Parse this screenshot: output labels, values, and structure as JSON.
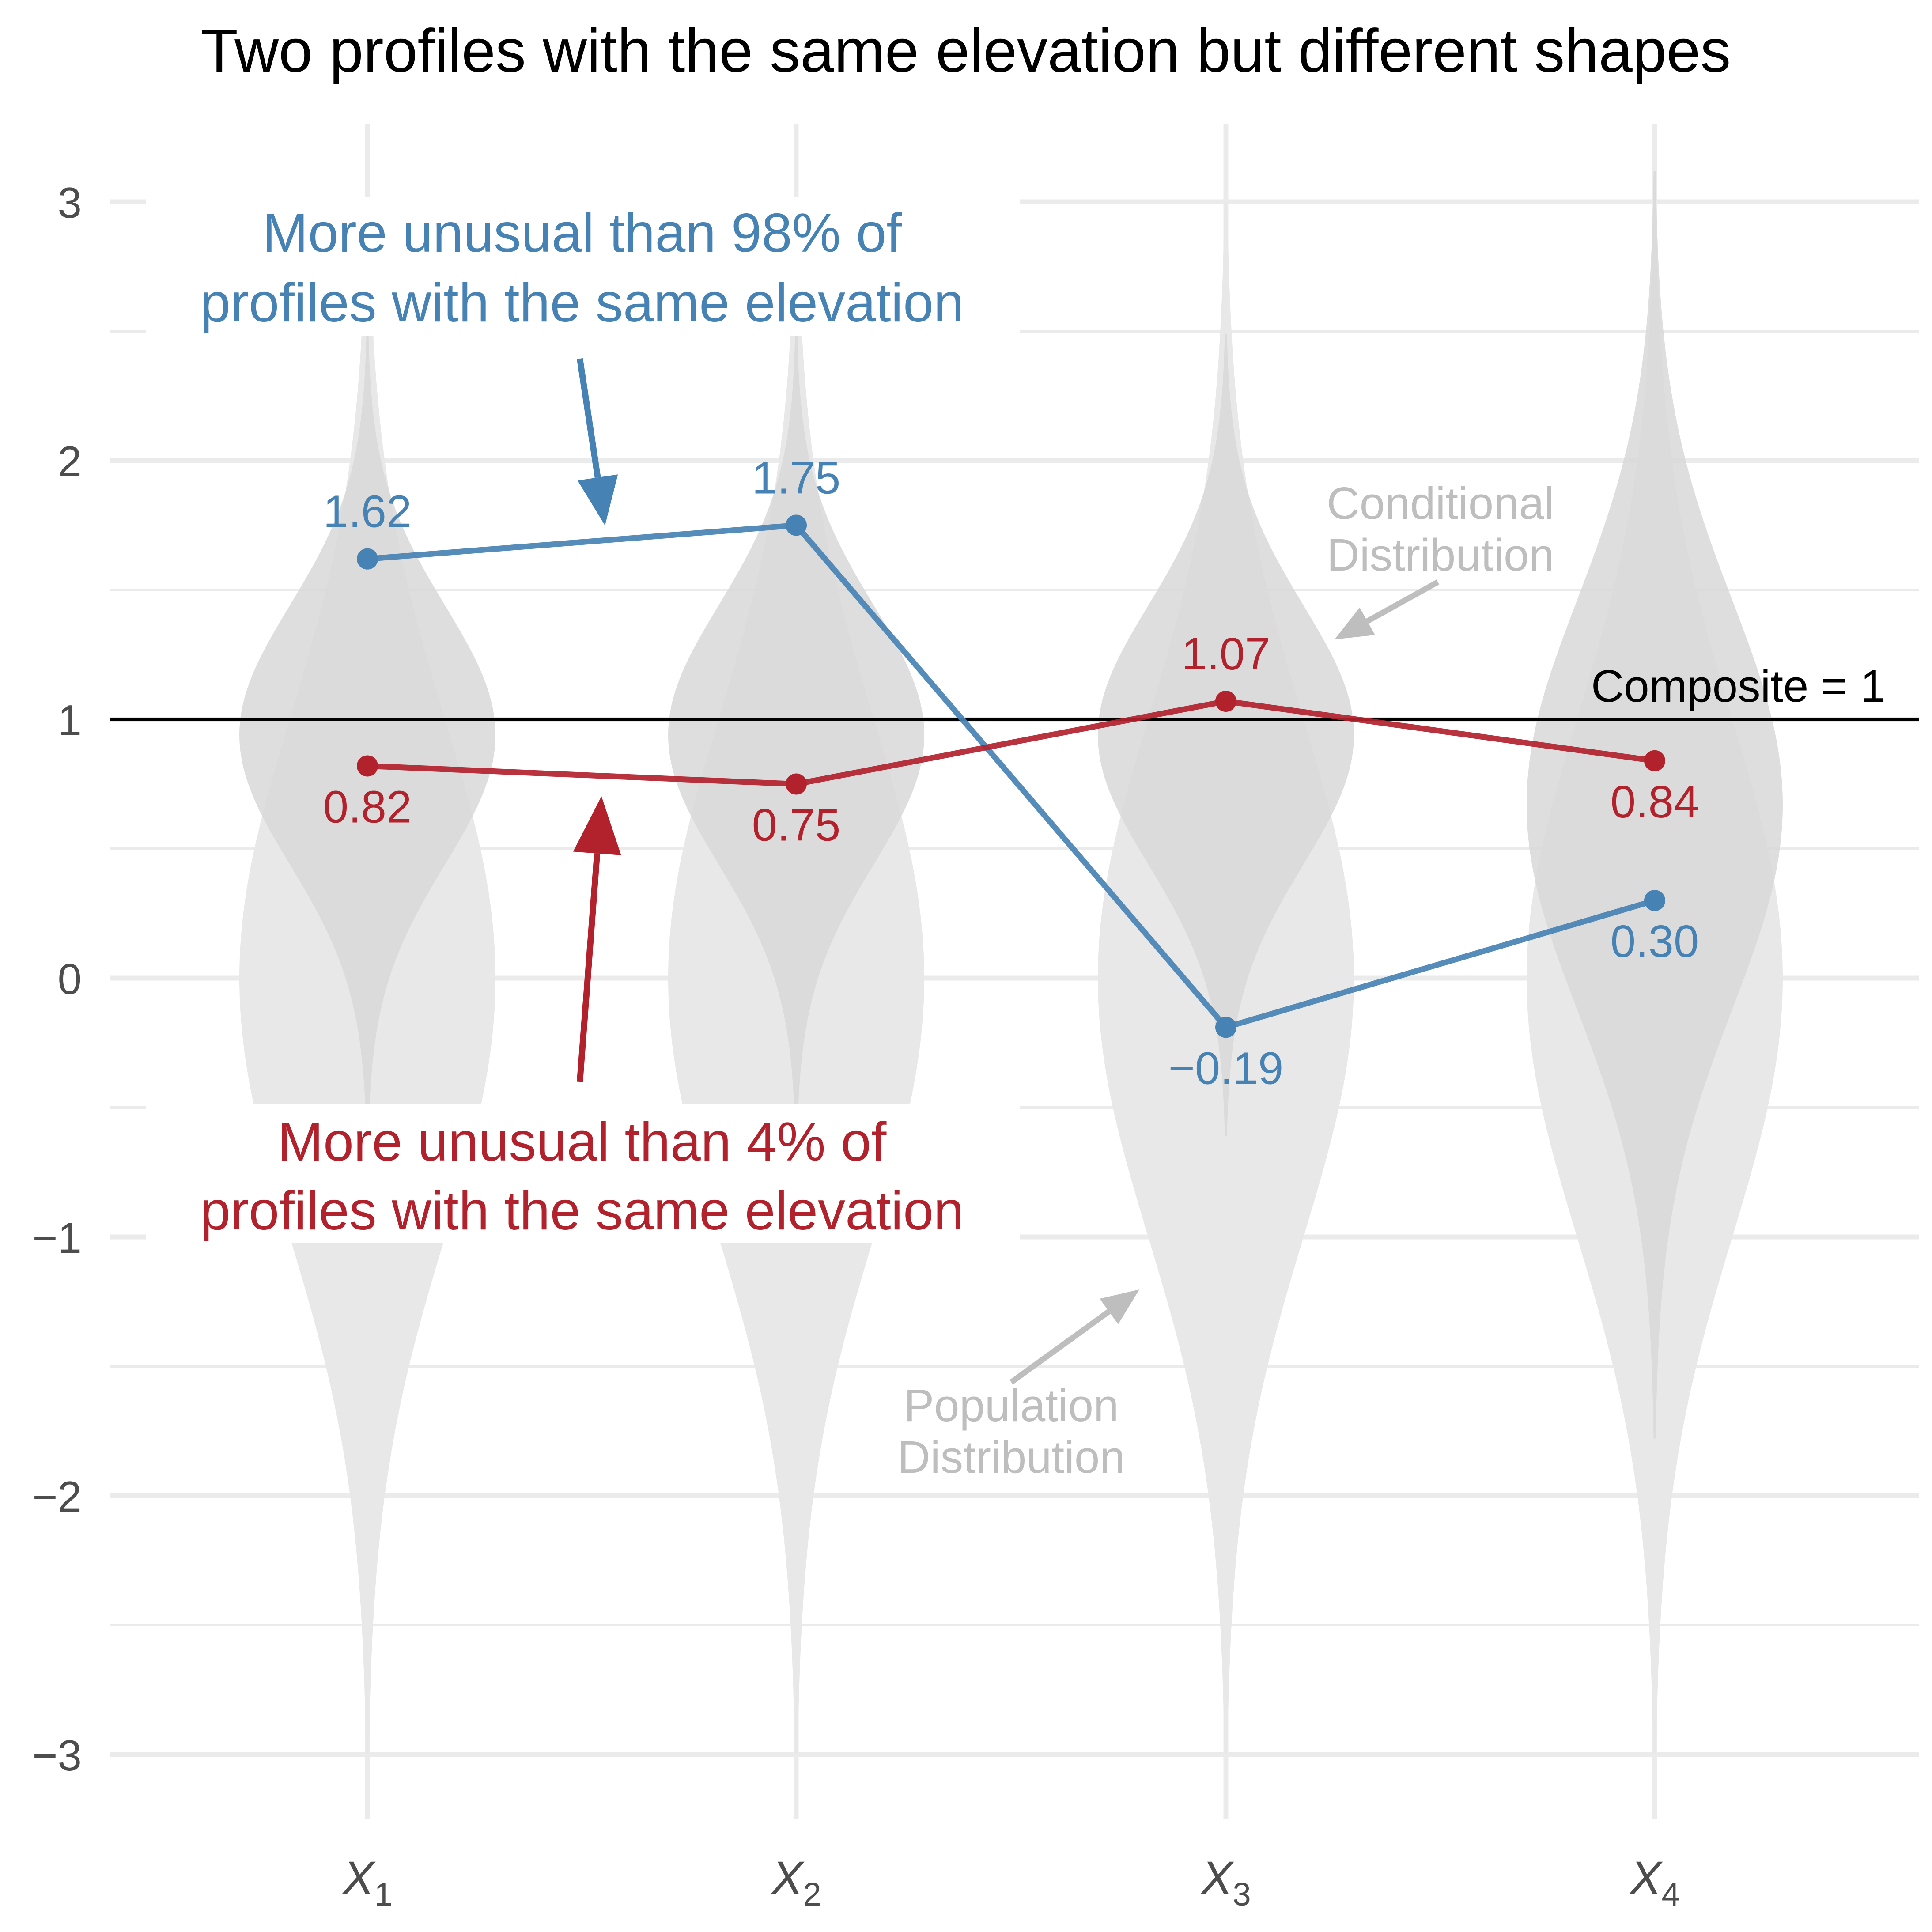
{
  "chart_data": {
    "type": "line",
    "title": "Two profiles with the same elevation but different shapes",
    "xlabel": "",
    "ylabel": "",
    "ylim": [
      -3.3,
      3.3
    ],
    "grid": true,
    "x_ticks": [
      {
        "main": "X",
        "sub": "1"
      },
      {
        "main": "X",
        "sub": "2"
      },
      {
        "main": "X",
        "sub": "3"
      },
      {
        "main": "X",
        "sub": "4"
      }
    ],
    "y_ticks": [
      {
        "value": 3,
        "label": "3"
      },
      {
        "value": 2,
        "label": "2"
      },
      {
        "value": 1,
        "label": "1"
      },
      {
        "value": 0,
        "label": "0"
      },
      {
        "value": -1,
        "label": "−1"
      },
      {
        "value": -2,
        "label": "−2"
      },
      {
        "value": -3,
        "label": "−3"
      }
    ],
    "composite": {
      "value": 1,
      "label": "Composite = 1"
    },
    "series": [
      {
        "color": "#4682b4",
        "values": [
          1.62,
          1.75,
          -0.19,
          0.3
        ],
        "labels": [
          "1.62",
          "1.75",
          "−0.19",
          "0.30"
        ],
        "label_pos": [
          "above",
          "above",
          "below",
          "below"
        ]
      },
      {
        "color": "#b2222c",
        "values": [
          0.82,
          0.75,
          1.07,
          0.84
        ],
        "labels": [
          "0.82",
          "0.75",
          "1.07",
          "0.84"
        ],
        "label_pos": [
          "below",
          "below",
          "above",
          "below"
        ]
      }
    ],
    "population_distribution": {
      "mean": 0,
      "sd": 1,
      "range": [
        -3,
        3
      ]
    },
    "conditional_distributions": [
      {
        "mean": 0.94,
        "sd": 0.5
      },
      {
        "mean": 0.94,
        "sd": 0.5
      },
      {
        "mean": 0.94,
        "sd": 0.5
      },
      {
        "mean": 0.67,
        "sd": 0.79
      }
    ],
    "annotations": {
      "blue_note": [
        "More unusual than 98% of",
        "profiles with the same elevation"
      ],
      "red_note": [
        "More unusual than 4% of",
        "profiles with the same elevation"
      ],
      "conditional_note": [
        "Conditional",
        "Distribution"
      ],
      "population_note": [
        "Population",
        "Distribution"
      ]
    },
    "colors": {
      "blue": "#4682b4",
      "red": "#b2222c",
      "violin_population": "#e8e8e8",
      "violin_conditional": "#d8d8d8",
      "grid": "#ebebeb",
      "note_gray": "#bebebe"
    }
  }
}
